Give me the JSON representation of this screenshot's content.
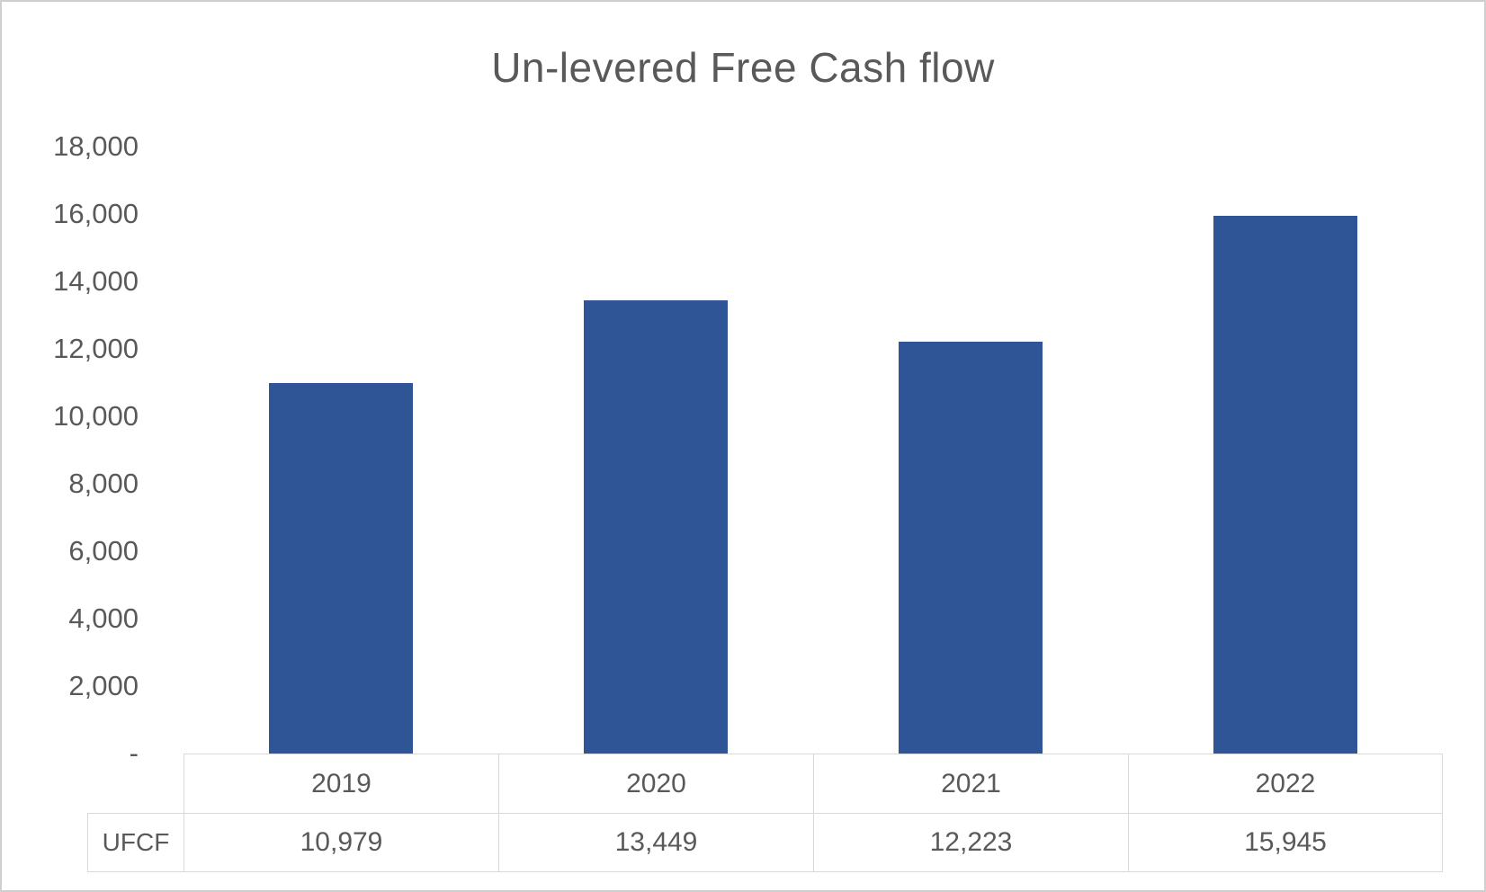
{
  "chart_data": {
    "type": "bar",
    "title": "Un-levered Free Cash flow",
    "categories": [
      "2019",
      "2020",
      "2021",
      "2022"
    ],
    "series": [
      {
        "name": "UFCF",
        "values": [
          10979,
          13449,
          12223,
          15945
        ],
        "labels": [
          "10,979",
          "13,449",
          "12,223",
          "15,945"
        ]
      }
    ],
    "xlabel": "",
    "ylabel": "",
    "ylim": [
      0,
      18000
    ],
    "ytick_step": 2000,
    "yticks": [
      {
        "value": 18000,
        "label": "18,000"
      },
      {
        "value": 16000,
        "label": "16,000"
      },
      {
        "value": 14000,
        "label": "14,000"
      },
      {
        "value": 12000,
        "label": "12,000"
      },
      {
        "value": 10000,
        "label": "10,000"
      },
      {
        "value": 8000,
        "label": "8,000"
      },
      {
        "value": 6000,
        "label": "6,000"
      },
      {
        "value": 4000,
        "label": "4,000"
      },
      {
        "value": 2000,
        "label": "2,000"
      },
      {
        "value": 0,
        "label": "-"
      }
    ],
    "grid": false,
    "legend_position": "none",
    "data_table_shown": true,
    "bar_color": "#2F5597"
  },
  "colors": {
    "bar_fill": "#2F5597",
    "text": "#595959",
    "table_border": "#d9d9d9",
    "frame_border": "#cfcfcf",
    "background": "#ffffff"
  }
}
